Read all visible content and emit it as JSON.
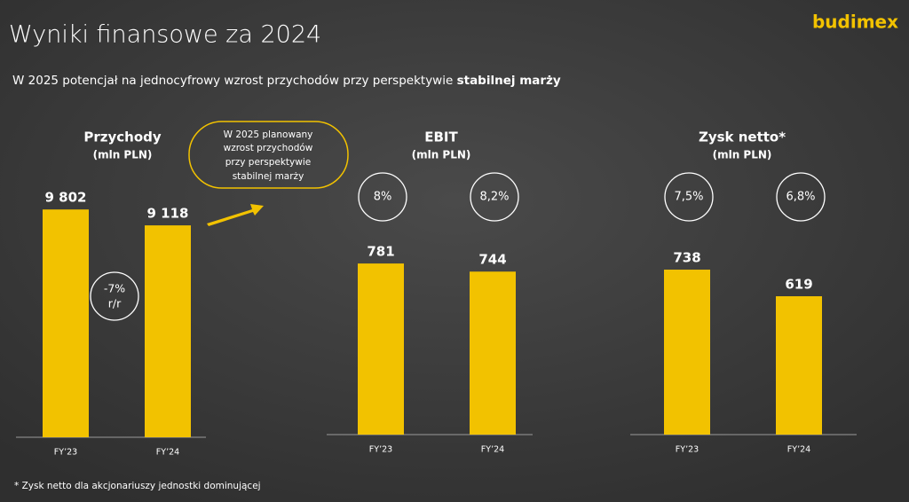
{
  "header": {
    "title": "Wyniki finansowe za 2024",
    "subtitle": [
      "W 2025 potencjał na jednocyfrowy wzrost przychodów przy perspektywie ",
      "stabilnej marży"
    ],
    "logo": "budimex"
  },
  "callout": [
    "W 2025 planowany",
    "wzrost przychodów",
    "przy perspektywie",
    "stabilnej marży"
  ],
  "footnote": "* Zysk netto dla akcjonariuszy jednostki dominującej",
  "chart_data": [
    {
      "type": "bar",
      "title": "Przychody",
      "subtitle": "(mln PLN)",
      "categories": [
        "FY’23",
        "FY’24"
      ],
      "values": [
        9802,
        9118
      ],
      "value_labels": [
        "9 802",
        "9 118"
      ],
      "color": "#f2c200",
      "ylim": [
        0,
        10000
      ],
      "change_label": [
        "-7%",
        "r/r"
      ]
    },
    {
      "type": "bar",
      "title": "EBIT",
      "subtitle": "(mln PLN)",
      "categories": [
        "FY’23",
        "FY’24"
      ],
      "values": [
        781,
        744
      ],
      "color": "#f2c200",
      "ylim": [
        0,
        1000
      ],
      "margin_labels": [
        "8%",
        "8,2%"
      ]
    },
    {
      "type": "bar",
      "title": "Zysk netto*",
      "subtitle": "(mln PLN)",
      "categories": [
        "FY’23",
        "FY’24"
      ],
      "values": [
        738,
        619
      ],
      "color": "#f2c200",
      "ylim": [
        0,
        1000
      ],
      "margin_labels": [
        "7,5%",
        "6,8%"
      ]
    }
  ]
}
